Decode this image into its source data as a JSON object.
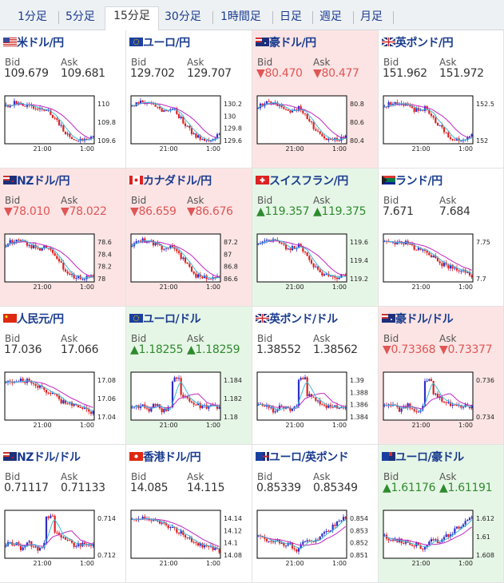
{
  "tabs": [
    {
      "label": "1分足",
      "active": false
    },
    {
      "label": "5分足",
      "active": false
    },
    {
      "label": "15分足",
      "active": true
    },
    {
      "label": "30分足",
      "active": false
    },
    {
      "label": "1時間足",
      "active": false
    },
    {
      "label": "日足",
      "active": false
    },
    {
      "label": "週足",
      "active": false
    },
    {
      "label": "月足",
      "active": false
    }
  ],
  "labels": {
    "bid": "Bid",
    "ask": "Ask"
  },
  "colors": {
    "up_candle": "#2e2ec8",
    "down_candle": "#e02020",
    "ma_fast": "#3bbcd6",
    "ma_slow": "#c028c0",
    "frame": "#000000",
    "up_text": "#2f8a2f",
    "down_text": "#e05555"
  },
  "pairs": [
    {
      "name": "米ドル/円",
      "flag": "us",
      "state": "flat",
      "bid": "109.679",
      "ask": "109.681",
      "chart_data": {
        "type": "candlestick",
        "x_ticks": [
          "21:00",
          "1:00"
        ],
        "y_ticks": [
          "110",
          "109.8",
          "109.6"
        ],
        "trend": "drop"
      }
    },
    {
      "name": "ユーロ/円",
      "flag": "eu",
      "state": "flat",
      "bid": "129.702",
      "ask": "129.707",
      "chart_data": {
        "type": "candlestick",
        "x_ticks": [
          "21:00",
          "1:00"
        ],
        "y_ticks": [
          "130.2",
          "130",
          "129.8",
          "129.6"
        ],
        "trend": "drop"
      }
    },
    {
      "name": "豪ドル/円",
      "flag": "au",
      "state": "down",
      "bid": "▼80.470",
      "ask": "▼80.477",
      "chart_data": {
        "type": "candlestick",
        "x_ticks": [
          "21:00",
          "1:00"
        ],
        "y_ticks": [
          "80.8",
          "80.6",
          "80.4"
        ],
        "trend": "drop"
      }
    },
    {
      "name": "英ポンド/円",
      "flag": "gb",
      "state": "flat",
      "bid": "151.962",
      "ask": "151.972",
      "chart_data": {
        "type": "candlestick",
        "x_ticks": [
          "21:00",
          "1:00"
        ],
        "y_ticks": [
          "152.5",
          "152"
        ],
        "trend": "drop"
      }
    },
    {
      "name": "NZドル/円",
      "flag": "nz",
      "state": "down",
      "bid": "▼78.010",
      "ask": "▼78.022",
      "chart_data": {
        "type": "candlestick",
        "x_ticks": [
          "21:00",
          "1:00"
        ],
        "y_ticks": [
          "78.6",
          "78.4",
          "78.2",
          "78"
        ],
        "trend": "drop"
      }
    },
    {
      "name": "カナダドル/円",
      "flag": "ca",
      "state": "down",
      "bid": "▼86.659",
      "ask": "▼86.676",
      "chart_data": {
        "type": "candlestick",
        "x_ticks": [
          "21:00",
          "1:00"
        ],
        "y_ticks": [
          "87.2",
          "87",
          "86.8",
          "86.6"
        ],
        "trend": "drop"
      }
    },
    {
      "name": "スイスフラン/円",
      "flag": "ch",
      "state": "up",
      "bid": "▲119.357",
      "ask": "▲119.375",
      "chart_data": {
        "type": "candlestick",
        "x_ticks": [
          "21:00",
          "1:00"
        ],
        "y_ticks": [
          "119.6",
          "119.4",
          "119.2"
        ],
        "trend": "drop"
      }
    },
    {
      "name": "ランド/円",
      "flag": "za",
      "state": "flat",
      "bid": "7.671",
      "ask": "7.684",
      "chart_data": {
        "type": "candlestick",
        "x_ticks": [
          "21:00",
          "1:00"
        ],
        "y_ticks": [
          "7.75",
          "7.7"
        ],
        "trend": "fall"
      }
    },
    {
      "name": "人民元/円",
      "flag": "cn",
      "state": "flat",
      "bid": "17.036",
      "ask": "17.066",
      "chart_data": {
        "type": "candlestick",
        "x_ticks": [
          "21:00",
          "1:00"
        ],
        "y_ticks": [
          "17.08",
          "17.06",
          "17.04"
        ],
        "trend": "fall"
      }
    },
    {
      "name": "ユーロ/ドル",
      "flag": "eu",
      "state": "up",
      "bid": "▲1.18255",
      "ask": "▲1.18259",
      "chart_data": {
        "type": "candlestick",
        "x_ticks": [
          "21:00",
          "1:00"
        ],
        "y_ticks": [
          "1.184",
          "1.182",
          "1.18"
        ],
        "trend": "spike"
      }
    },
    {
      "name": "英ポンド/ドル",
      "flag": "gb",
      "state": "flat",
      "bid": "1.38552",
      "ask": "1.38562",
      "chart_data": {
        "type": "candlestick",
        "x_ticks": [
          "21:00",
          "1:00"
        ],
        "y_ticks": [
          "1.39",
          "1.388",
          "1.386",
          "1.384"
        ],
        "trend": "spike"
      }
    },
    {
      "name": "豪ドル/ドル",
      "flag": "au",
      "state": "down",
      "bid": "▼0.73368",
      "ask": "▼0.73377",
      "chart_data": {
        "type": "candlestick",
        "x_ticks": [
          "21:00",
          "1:00"
        ],
        "y_ticks": [
          "0.736",
          "0.734"
        ],
        "trend": "spike"
      }
    },
    {
      "name": "NZドル/ドル",
      "flag": "nz",
      "state": "flat",
      "bid": "0.71117",
      "ask": "0.71133",
      "chart_data": {
        "type": "candlestick",
        "x_ticks": [
          "21:00",
          "1:00"
        ],
        "y_ticks": [
          "0.714",
          "0.712"
        ],
        "trend": "spike"
      }
    },
    {
      "name": "香港ドル/円",
      "flag": "hk",
      "state": "flat",
      "bid": "14.085",
      "ask": "14.115",
      "chart_data": {
        "type": "candlestick",
        "x_ticks": [
          "21:00",
          "1:00"
        ],
        "y_ticks": [
          "14.14",
          "14.12",
          "14.1",
          "14.08"
        ],
        "trend": "fall"
      }
    },
    {
      "name": "ユーロ/英ポンド",
      "flag": "eugb",
      "state": "flat",
      "bid": "0.85339",
      "ask": "0.85349",
      "chart_data": {
        "type": "candlestick",
        "x_ticks": [
          "21:00",
          "1:00"
        ],
        "y_ticks": [
          "0.854",
          "0.853",
          "0.852",
          "0.851"
        ],
        "trend": "rise"
      }
    },
    {
      "name": "ユーロ/豪ドル",
      "flag": "euau",
      "state": "up",
      "bid": "▲1.61176",
      "ask": "▲1.61191",
      "chart_data": {
        "type": "candlestick",
        "x_ticks": [
          "21:00",
          "1:00"
        ],
        "y_ticks": [
          "1.612",
          "1.61",
          "1.608"
        ],
        "trend": "rise"
      }
    }
  ]
}
